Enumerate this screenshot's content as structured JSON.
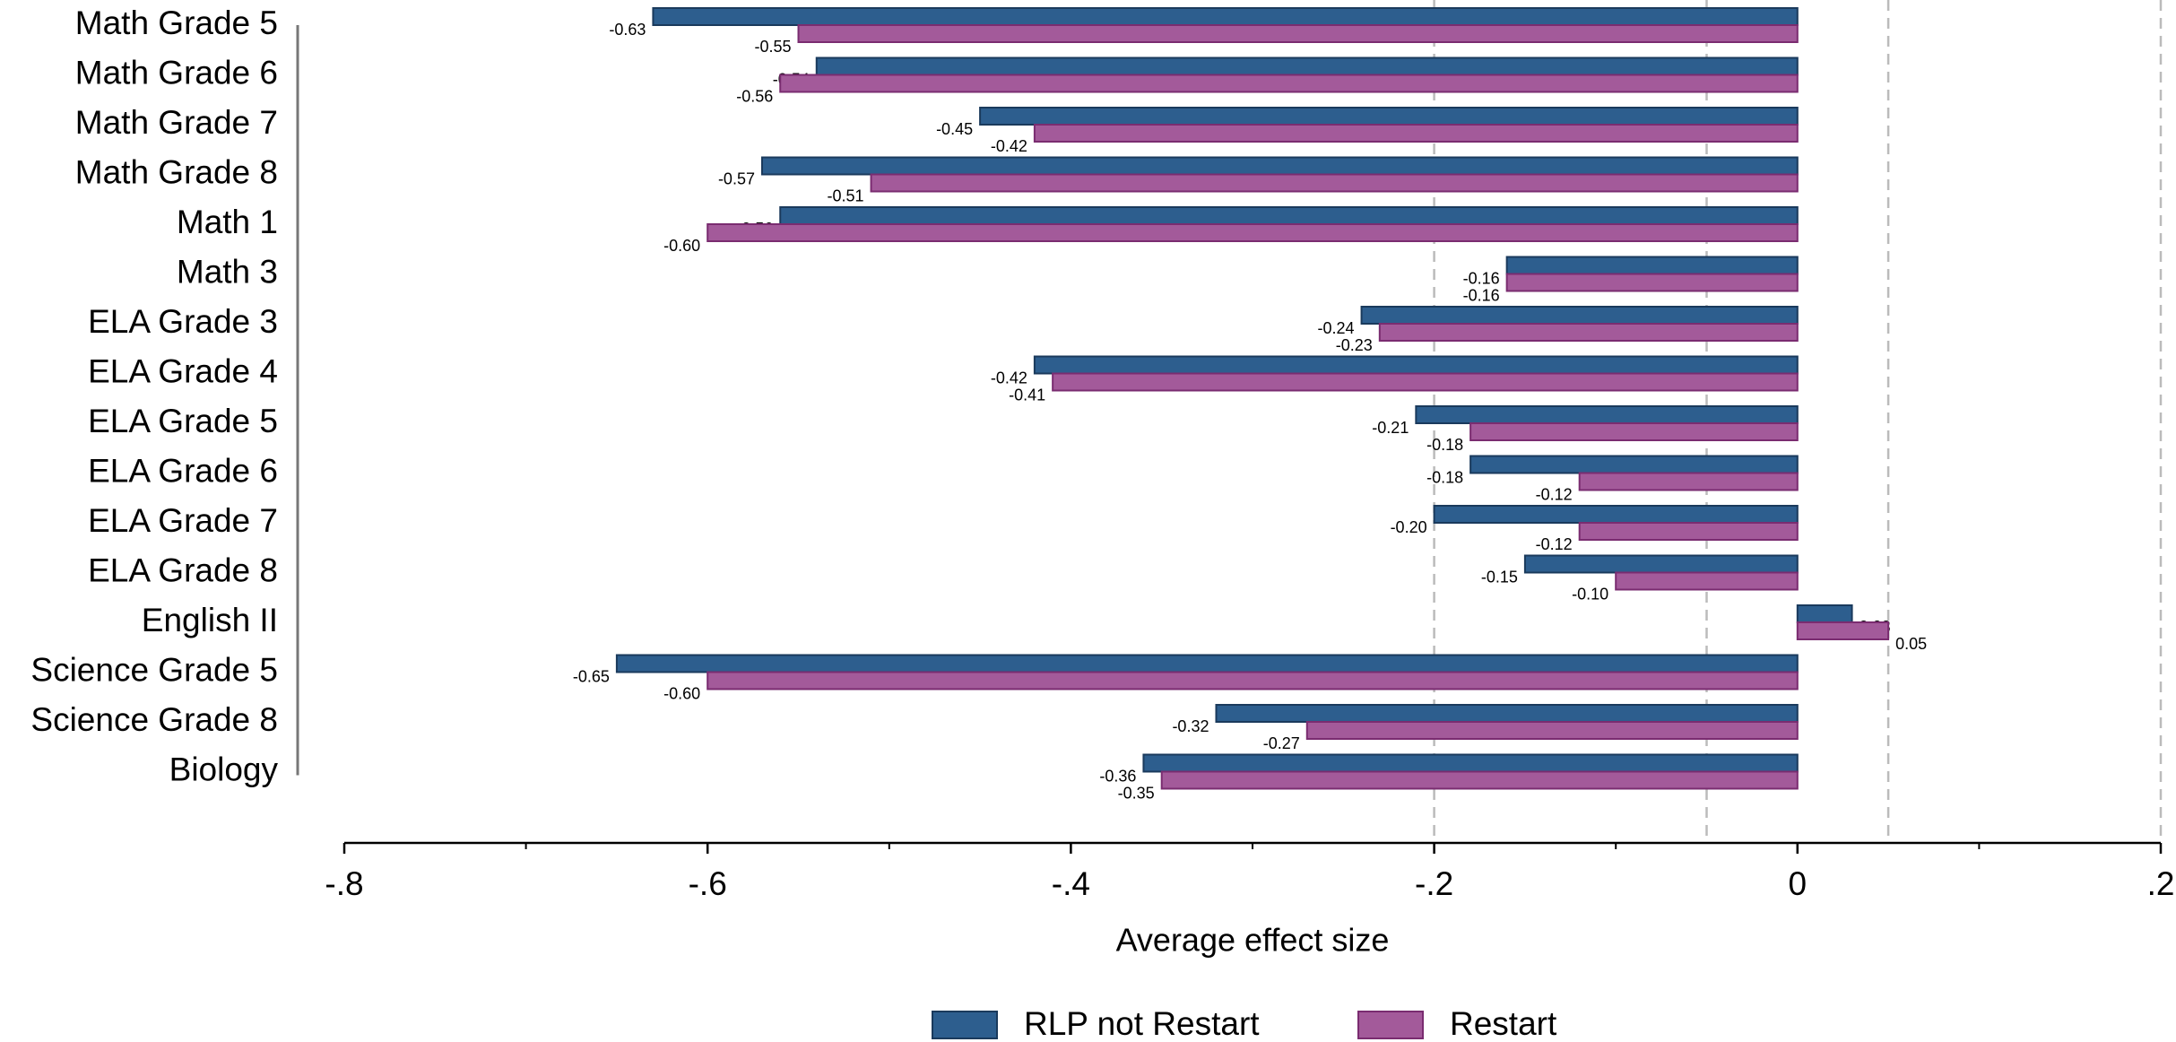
{
  "chart_data": {
    "type": "hbar",
    "x_label": "Average effect size",
    "categories": [
      "Math Grade 5",
      "Math Grade 6",
      "Math Grade 7",
      "Math Grade 8",
      "Math 1",
      "Math 3",
      "ELA Grade 3",
      "ELA Grade 4",
      "ELA Grade 5",
      "ELA Grade 6",
      "ELA Grade 7",
      "ELA Grade 8",
      "English II",
      "Science Grade 5",
      "Science Grade 8",
      "Biology"
    ],
    "series": [
      {
        "name": "RLP not Restart",
        "color": "#2d5e8e",
        "values": [
          -0.63,
          -0.54,
          -0.45,
          -0.57,
          -0.56,
          -0.16,
          -0.24,
          -0.42,
          -0.21,
          -0.18,
          -0.2,
          -0.15,
          0.03,
          -0.65,
          -0.32,
          -0.36
        ],
        "value_labels": [
          "-0.63",
          "-0.54",
          "-0.45",
          "-0.57",
          "-0.56",
          "-0.16",
          "-0.24",
          "-0.42",
          "-0.21",
          "-0.18",
          "-0.20",
          "-0.15",
          "0.03",
          "-0.65",
          "-0.32",
          "-0.36"
        ]
      },
      {
        "name": "Restart",
        "color": "#a35a9a",
        "values": [
          -0.55,
          -0.56,
          -0.42,
          -0.51,
          -0.6,
          -0.16,
          -0.23,
          -0.41,
          -0.18,
          -0.12,
          -0.12,
          -0.1,
          0.05,
          -0.6,
          -0.27,
          -0.35
        ],
        "value_labels": [
          "-0.55",
          "-0.56",
          "-0.42",
          "-0.51",
          "-0.60",
          "-0.16",
          "-0.23",
          "-0.41",
          "-0.18",
          "-0.12",
          "-0.12",
          "-0.10",
          "0.05",
          "-0.60",
          "-0.27",
          "-0.35"
        ]
      }
    ],
    "xlim": [
      -0.8,
      0.2
    ],
    "xticks": [
      {
        "value": -0.8,
        "label": "-.8"
      },
      {
        "value": -0.6,
        "label": "-.6"
      },
      {
        "value": -0.4,
        "label": "-.4"
      },
      {
        "value": -0.2,
        "label": "-.2"
      },
      0,
      {
        "value": 0.2,
        "label": ".2"
      }
    ],
    "xminorticks": [
      -0.7,
      -0.5,
      -0.3,
      -0.1,
      0.1
    ],
    "reference_lines": [
      -0.2,
      -0.05,
      0.05,
      0.2
    ],
    "legend": "bottom"
  }
}
